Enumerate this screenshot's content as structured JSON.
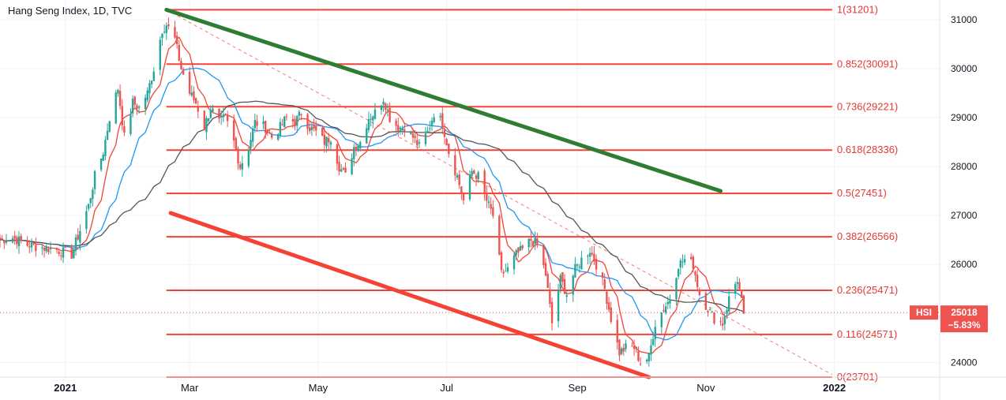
{
  "chart_data": {
    "type": "candlestick",
    "title": "Hang Seng Index, 1D, TVC",
    "ylim": [
      23700,
      31400
    ],
    "y_ticks": [
      24000,
      25000,
      26000,
      27000,
      28000,
      29000,
      30000,
      31000
    ],
    "x_ticks": [
      {
        "label": "2021",
        "date": "2021-01-01"
      },
      {
        "label": "Mar",
        "date": "2021-03-01"
      },
      {
        "label": "May",
        "date": "2021-05-01"
      },
      {
        "label": "Jul",
        "date": "2021-07-01"
      },
      {
        "label": "Sep",
        "date": "2021-09-01"
      },
      {
        "label": "Nov",
        "date": "2021-11-01"
      },
      {
        "label": "2022",
        "date": "2022-01-01"
      }
    ],
    "x_range": [
      "2020-12-01",
      "2022-02-20"
    ],
    "fib_levels": [
      {
        "label": "1(31201)",
        "value": 31201
      },
      {
        "label": "0.852(30091)",
        "value": 30091
      },
      {
        "label": "0.736(29221)",
        "value": 29221
      },
      {
        "label": "0.618(28336)",
        "value": 28336
      },
      {
        "label": "0.5(27451)",
        "value": 27451
      },
      {
        "label": "0.382(26566)",
        "value": 26566
      },
      {
        "label": "0.236(25471)",
        "value": 25471
      },
      {
        "label": "0.116(24571)",
        "value": 24571
      },
      {
        "label": "0(23701)",
        "value": 23701
      }
    ],
    "fib_start": "2021-02-18",
    "fib_end": "2021-12-31",
    "trendlines": [
      {
        "color": "#2e7d32",
        "from": {
          "date": "2021-02-18",
          "value": 31201
        },
        "to": {
          "date": "2021-11-08",
          "value": 27500
        }
      },
      {
        "color": "#f44336",
        "from": {
          "date": "2021-02-20",
          "value": 27050
        },
        "to": {
          "date": "2021-10-05",
          "value": 23700
        }
      }
    ],
    "dashed_line": {
      "from": {
        "date": "2021-02-18",
        "value": 31201
      },
      "to": {
        "date": "2021-12-31",
        "value": 23750
      }
    },
    "last_price": {
      "symbol": "HSI",
      "value": 25018,
      "change": "−5.83%"
    },
    "series_close": [
      [
        "2020-12-01",
        26500
      ],
      [
        "2020-12-07",
        26550
      ],
      [
        "2020-12-14",
        26400
      ],
      [
        "2020-12-21",
        26350
      ],
      [
        "2020-12-28",
        26300
      ],
      [
        "2021-01-04",
        26200
      ],
      [
        "2021-01-08",
        26700
      ],
      [
        "2021-01-12",
        27200
      ],
      [
        "2021-01-15",
        27800
      ],
      [
        "2021-01-19",
        28300
      ],
      [
        "2021-01-22",
        29000
      ],
      [
        "2021-01-26",
        29600
      ],
      [
        "2021-01-29",
        28600
      ],
      [
        "2021-02-02",
        29300
      ],
      [
        "2021-02-05",
        29200
      ],
      [
        "2021-02-09",
        29500
      ],
      [
        "2021-02-12",
        30000
      ],
      [
        "2021-02-16",
        30800
      ],
      [
        "2021-02-18",
        30900
      ],
      [
        "2021-02-22",
        30600
      ],
      [
        "2021-02-25",
        30000
      ],
      [
        "2021-03-01",
        29500
      ],
      [
        "2021-03-04",
        29300
      ],
      [
        "2021-03-08",
        28800
      ],
      [
        "2021-03-11",
        29200
      ],
      [
        "2021-03-15",
        28900
      ],
      [
        "2021-03-18",
        29000
      ],
      [
        "2021-03-22",
        28500
      ],
      [
        "2021-03-25",
        28000
      ],
      [
        "2021-03-29",
        28400
      ],
      [
        "2021-04-01",
        28900
      ],
      [
        "2021-04-06",
        28800
      ],
      [
        "2021-04-09",
        28600
      ],
      [
        "2021-04-13",
        28800
      ],
      [
        "2021-04-16",
        29000
      ],
      [
        "2021-04-20",
        28900
      ],
      [
        "2021-04-23",
        29100
      ],
      [
        "2021-04-27",
        28800
      ],
      [
        "2021-04-30",
        28700
      ],
      [
        "2021-05-04",
        28500
      ],
      [
        "2021-05-07",
        28600
      ],
      [
        "2021-05-11",
        28000
      ],
      [
        "2021-05-14",
        27800
      ],
      [
        "2021-05-18",
        28400
      ],
      [
        "2021-05-21",
        28500
      ],
      [
        "2021-05-25",
        29000
      ],
      [
        "2021-05-28",
        29100
      ],
      [
        "2021-06-01",
        29400
      ],
      [
        "2021-06-04",
        29000
      ],
      [
        "2021-06-08",
        28800
      ],
      [
        "2021-06-11",
        28800
      ],
      [
        "2021-06-15",
        28600
      ],
      [
        "2021-06-18",
        28400
      ],
      [
        "2021-06-22",
        28700
      ],
      [
        "2021-06-25",
        29100
      ],
      [
        "2021-06-29",
        28900
      ],
      [
        "2021-07-02",
        28300
      ],
      [
        "2021-07-06",
        27800
      ],
      [
        "2021-07-09",
        27300
      ],
      [
        "2021-07-13",
        27900
      ],
      [
        "2021-07-16",
        27800
      ],
      [
        "2021-07-20",
        27300
      ],
      [
        "2021-07-23",
        27000
      ],
      [
        "2021-07-27",
        25800
      ],
      [
        "2021-07-30",
        25900
      ],
      [
        "2021-08-03",
        26200
      ],
      [
        "2021-08-06",
        26300
      ],
      [
        "2021-08-10",
        26500
      ],
      [
        "2021-08-13",
        26400
      ],
      [
        "2021-08-17",
        25800
      ],
      [
        "2021-08-20",
        24800
      ],
      [
        "2021-08-24",
        25700
      ],
      [
        "2021-08-27",
        25400
      ],
      [
        "2021-08-31",
        25900
      ],
      [
        "2021-09-03",
        26100
      ],
      [
        "2021-09-07",
        26300
      ],
      [
        "2021-09-10",
        26000
      ],
      [
        "2021-09-14",
        25500
      ],
      [
        "2021-09-17",
        24900
      ],
      [
        "2021-09-21",
        24200
      ],
      [
        "2021-09-24",
        24300
      ],
      [
        "2021-09-28",
        24300
      ],
      [
        "2021-10-01",
        24000
      ],
      [
        "2021-10-05",
        24100
      ],
      [
        "2021-10-08",
        24800
      ],
      [
        "2021-10-12",
        25100
      ],
      [
        "2021-10-15",
        25300
      ],
      [
        "2021-10-19",
        26000
      ],
      [
        "2021-10-22",
        26100
      ],
      [
        "2021-10-26",
        26000
      ],
      [
        "2021-10-29",
        25400
      ],
      [
        "2021-11-02",
        25100
      ],
      [
        "2021-11-05",
        24900
      ],
      [
        "2021-11-09",
        24800
      ],
      [
        "2021-11-12",
        25300
      ],
      [
        "2021-11-16",
        25700
      ],
      [
        "2021-11-19",
        25000
      ]
    ]
  }
}
